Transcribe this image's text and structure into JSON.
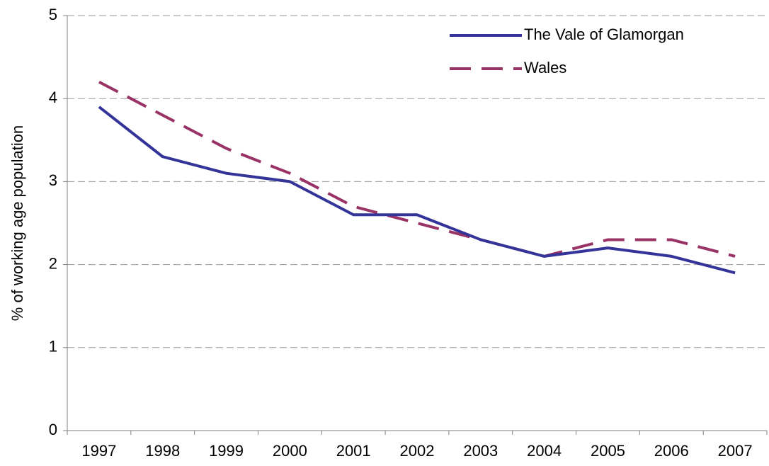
{
  "chart_data": {
    "type": "line",
    "y_label": "% of working age population",
    "categories": [
      "1997",
      "1998",
      "1999",
      "2000",
      "2001",
      "2002",
      "2003",
      "2004",
      "2005",
      "2006",
      "2007"
    ],
    "series": [
      {
        "name": "The Vale of Glamorgan",
        "color": "#333399",
        "dashed": false,
        "values": [
          3.9,
          3.3,
          3.1,
          3.0,
          2.6,
          2.6,
          2.3,
          2.1,
          2.2,
          2.1,
          1.9
        ]
      },
      {
        "name": "Wales",
        "color": "#993366",
        "dashed": true,
        "values": [
          4.2,
          3.8,
          3.4,
          3.1,
          2.7,
          2.5,
          2.3,
          2.1,
          2.3,
          2.3,
          2.1
        ]
      }
    ],
    "ylim": [
      0,
      5
    ],
    "yticks": [
      0,
      1,
      2,
      3,
      4,
      5
    ],
    "grid": true,
    "legend": "upper right"
  }
}
